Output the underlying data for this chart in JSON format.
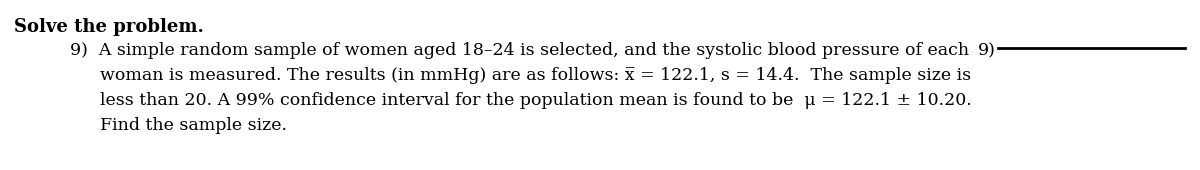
{
  "header": "Solve the problem.",
  "line1_left": "9)  A simple random sample of women aged 18–24 is selected, and the systolic blood pressure of each",
  "line1_right_num": "9)",
  "line2": "woman is measured. The results (in mmHg) are as follows: x̅ = 122.1, s = 14.4.  The sample size is",
  "line3": "less than 20. A 99% confidence interval for the population mean is found to be  μ = 122.1 ± 10.20.",
  "line4": "Find the sample size.",
  "background_color": "#ffffff",
  "text_color": "#000000",
  "header_fontsize": 13,
  "body_fontsize": 12.5,
  "fig_width": 12.0,
  "fig_height": 1.7,
  "dpi": 100
}
